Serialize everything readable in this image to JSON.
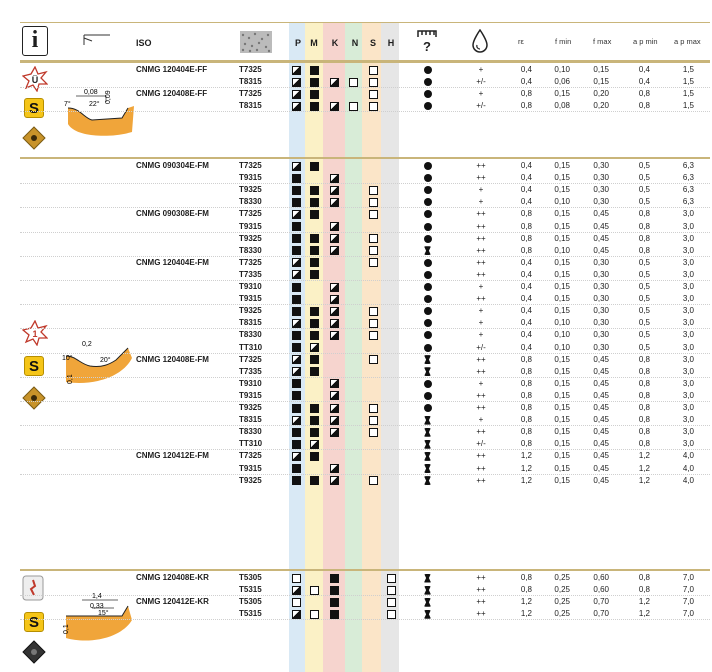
{
  "header": {
    "info_icon": "i",
    "iso_label": "ISO",
    "materials": [
      "P",
      "M",
      "K",
      "N",
      "S",
      "H"
    ],
    "cooling_symbol": "drop-icon",
    "params": [
      "rε",
      "f min",
      "f max",
      "a p min",
      "a p max"
    ]
  },
  "colors": {
    "P": "#d9e9f5",
    "M": "#fbf1c6",
    "K": "#f6d4ce",
    "N": "#d8ecd7",
    "S": "#fbe5c8",
    "H": "#e6e6e6",
    "accent": "#f5c518",
    "rule": "#c9b57a"
  },
  "sections": [
    {
      "geometry_labels": [
        "0,08",
        "7°",
        "22°",
        "0,09"
      ],
      "rows": [
        {
          "iso": "CNMG 120404E-FF",
          "grade": "T7325",
          "P": "half",
          "M": "full",
          "K": "",
          "N": "",
          "S": "empty",
          "H": "",
          "dot": "single",
          "cool": "+",
          "re": "0,4",
          "fmin": "0,10",
          "fmax": "0,15",
          "apmin": "0,4",
          "apmax": "1,5"
        },
        {
          "iso": "",
          "grade": "T8315",
          "P": "half",
          "M": "full",
          "K": "half",
          "N": "empty",
          "S": "empty",
          "H": "",
          "dot": "single",
          "cool": "+/-",
          "re": "0,4",
          "fmin": "0,06",
          "fmax": "0,15",
          "apmin": "0,4",
          "apmax": "1,5"
        },
        {
          "iso": "CNMG 120408E-FF",
          "grade": "T7325",
          "P": "half",
          "M": "full",
          "K": "",
          "N": "",
          "S": "empty",
          "H": "",
          "dot": "single",
          "cool": "+",
          "re": "0,8",
          "fmin": "0,15",
          "fmax": "0,20",
          "apmin": "0,8",
          "apmax": "1,5"
        },
        {
          "iso": "",
          "grade": "T8315",
          "P": "half",
          "M": "full",
          "K": "half",
          "N": "empty",
          "S": "empty",
          "H": "",
          "dot": "single",
          "cool": "+/-",
          "re": "0,8",
          "fmin": "0,08",
          "fmax": "0,20",
          "apmin": "0,8",
          "apmax": "1,5"
        }
      ]
    },
    {
      "geometry_labels": [
        "0,2",
        "10°",
        "20°",
        "0,1"
      ],
      "rows": [
        {
          "iso": "CNMG 090304E-FM",
          "grade": "T7325",
          "P": "half",
          "M": "full",
          "K": "",
          "N": "",
          "S": "",
          "H": "",
          "dot": "single",
          "cool": "++",
          "re": "0,4",
          "fmin": "0,15",
          "fmax": "0,30",
          "apmin": "0,5",
          "apmax": "6,3"
        },
        {
          "iso": "",
          "grade": "T9315",
          "P": "full",
          "M": "",
          "K": "half",
          "N": "",
          "S": "",
          "H": "",
          "dot": "single",
          "cool": "++",
          "re": "0,4",
          "fmin": "0,15",
          "fmax": "0,30",
          "apmin": "0,5",
          "apmax": "6,3"
        },
        {
          "iso": "",
          "grade": "T9325",
          "P": "full",
          "M": "full",
          "K": "half",
          "N": "",
          "S": "empty",
          "H": "",
          "dot": "single",
          "cool": "+",
          "re": "0,4",
          "fmin": "0,15",
          "fmax": "0,30",
          "apmin": "0,5",
          "apmax": "6,3"
        },
        {
          "iso": "",
          "grade": "T8330",
          "P": "full",
          "M": "full",
          "K": "half",
          "N": "",
          "S": "empty",
          "H": "",
          "dot": "single",
          "cool": "+",
          "re": "0,4",
          "fmin": "0,10",
          "fmax": "0,30",
          "apmin": "0,5",
          "apmax": "6,3"
        },
        {
          "iso": "CNMG 090308E-FM",
          "grade": "T7325",
          "P": "half",
          "M": "full",
          "K": "",
          "N": "",
          "S": "empty",
          "H": "",
          "dot": "single",
          "cool": "++",
          "re": "0,8",
          "fmin": "0,15",
          "fmax": "0,45",
          "apmin": "0,8",
          "apmax": "3,0"
        },
        {
          "iso": "",
          "grade": "T9315",
          "P": "full",
          "M": "",
          "K": "half",
          "N": "",
          "S": "",
          "H": "",
          "dot": "single",
          "cool": "++",
          "re": "0,8",
          "fmin": "0,15",
          "fmax": "0,45",
          "apmin": "0,8",
          "apmax": "3,0"
        },
        {
          "iso": "",
          "grade": "T9325",
          "P": "full",
          "M": "full",
          "K": "half",
          "N": "",
          "S": "empty",
          "H": "",
          "dot": "single",
          "cool": "++",
          "re": "0,8",
          "fmin": "0,15",
          "fmax": "0,45",
          "apmin": "0,8",
          "apmax": "3,0"
        },
        {
          "iso": "",
          "grade": "T8330",
          "P": "full",
          "M": "full",
          "K": "half",
          "N": "",
          "S": "empty",
          "H": "",
          "dot": "double",
          "cool": "++",
          "re": "0,8",
          "fmin": "0,10",
          "fmax": "0,45",
          "apmin": "0,8",
          "apmax": "3,0"
        },
        {
          "iso": "CNMG 120404E-FM",
          "grade": "T7325",
          "P": "half",
          "M": "full",
          "K": "",
          "N": "",
          "S": "empty",
          "H": "",
          "dot": "single",
          "cool": "++",
          "re": "0,4",
          "fmin": "0,15",
          "fmax": "0,30",
          "apmin": "0,5",
          "apmax": "3,0"
        },
        {
          "iso": "",
          "grade": "T7335",
          "P": "half",
          "M": "full",
          "K": "",
          "N": "",
          "S": "",
          "H": "",
          "dot": "single",
          "cool": "++",
          "re": "0,4",
          "fmin": "0,15",
          "fmax": "0,30",
          "apmin": "0,5",
          "apmax": "3,0"
        },
        {
          "iso": "",
          "grade": "T9310",
          "P": "full",
          "M": "",
          "K": "half",
          "N": "",
          "S": "",
          "H": "",
          "dot": "single",
          "cool": "+",
          "re": "0,4",
          "fmin": "0,15",
          "fmax": "0,30",
          "apmin": "0,5",
          "apmax": "3,0"
        },
        {
          "iso": "",
          "grade": "T9315",
          "P": "full",
          "M": "",
          "K": "half",
          "N": "",
          "S": "",
          "H": "",
          "dot": "single",
          "cool": "++",
          "re": "0,4",
          "fmin": "0,15",
          "fmax": "0,30",
          "apmin": "0,5",
          "apmax": "3,0"
        },
        {
          "iso": "",
          "grade": "T9325",
          "P": "full",
          "M": "full",
          "K": "half",
          "N": "",
          "S": "empty",
          "H": "",
          "dot": "single",
          "cool": "+",
          "re": "0,4",
          "fmin": "0,15",
          "fmax": "0,30",
          "apmin": "0,5",
          "apmax": "3,0"
        },
        {
          "iso": "",
          "grade": "T8315",
          "P": "half",
          "M": "full",
          "K": "half",
          "N": "",
          "S": "empty",
          "H": "",
          "dot": "single",
          "cool": "+",
          "re": "0,4",
          "fmin": "0,10",
          "fmax": "0,30",
          "apmin": "0,5",
          "apmax": "3,0"
        },
        {
          "iso": "",
          "grade": "T8330",
          "P": "full",
          "M": "full",
          "K": "half",
          "N": "",
          "S": "empty",
          "H": "",
          "dot": "single",
          "cool": "+",
          "re": "0,4",
          "fmin": "0,10",
          "fmax": "0,30",
          "apmin": "0,5",
          "apmax": "3,0"
        },
        {
          "iso": "",
          "grade": "TT310",
          "P": "full",
          "M": "half",
          "K": "",
          "N": "",
          "S": "",
          "H": "",
          "dot": "single",
          "cool": "+/-",
          "re": "0,4",
          "fmin": "0,10",
          "fmax": "0,30",
          "apmin": "0,5",
          "apmax": "3,0"
        },
        {
          "iso": "CNMG 120408E-FM",
          "grade": "T7325",
          "P": "half",
          "M": "full",
          "K": "",
          "N": "",
          "S": "empty",
          "H": "",
          "dot": "double",
          "cool": "++",
          "re": "0,8",
          "fmin": "0,15",
          "fmax": "0,45",
          "apmin": "0,8",
          "apmax": "3,0"
        },
        {
          "iso": "",
          "grade": "T7335",
          "P": "half",
          "M": "full",
          "K": "",
          "N": "",
          "S": "",
          "H": "",
          "dot": "double",
          "cool": "++",
          "re": "0,8",
          "fmin": "0,15",
          "fmax": "0,45",
          "apmin": "0,8",
          "apmax": "3,0"
        },
        {
          "iso": "",
          "grade": "T9310",
          "P": "full",
          "M": "",
          "K": "half",
          "N": "",
          "S": "",
          "H": "",
          "dot": "single",
          "cool": "+",
          "re": "0,8",
          "fmin": "0,15",
          "fmax": "0,45",
          "apmin": "0,8",
          "apmax": "3,0"
        },
        {
          "iso": "",
          "grade": "T9315",
          "P": "full",
          "M": "",
          "K": "half",
          "N": "",
          "S": "",
          "H": "",
          "dot": "single",
          "cool": "++",
          "re": "0,8",
          "fmin": "0,15",
          "fmax": "0,45",
          "apmin": "0,8",
          "apmax": "3,0"
        },
        {
          "iso": "",
          "grade": "T9325",
          "P": "full",
          "M": "full",
          "K": "half",
          "N": "",
          "S": "empty",
          "H": "",
          "dot": "single",
          "cool": "++",
          "re": "0,8",
          "fmin": "0,15",
          "fmax": "0,45",
          "apmin": "0,8",
          "apmax": "3,0"
        },
        {
          "iso": "",
          "grade": "T8315",
          "P": "half",
          "M": "full",
          "K": "half",
          "N": "",
          "S": "empty",
          "H": "",
          "dot": "double",
          "cool": "+",
          "re": "0,8",
          "fmin": "0,15",
          "fmax": "0,45",
          "apmin": "0,8",
          "apmax": "3,0"
        },
        {
          "iso": "",
          "grade": "T8330",
          "P": "full",
          "M": "full",
          "K": "half",
          "N": "",
          "S": "empty",
          "H": "",
          "dot": "double",
          "cool": "++",
          "re": "0,8",
          "fmin": "0,15",
          "fmax": "0,45",
          "apmin": "0,8",
          "apmax": "3,0"
        },
        {
          "iso": "",
          "grade": "TT310",
          "P": "full",
          "M": "half",
          "K": "",
          "N": "",
          "S": "",
          "H": "",
          "dot": "double",
          "cool": "+/-",
          "re": "0,8",
          "fmin": "0,15",
          "fmax": "0,45",
          "apmin": "0,8",
          "apmax": "3,0"
        },
        {
          "iso": "CNMG 120412E-FM",
          "grade": "T7325",
          "P": "half",
          "M": "full",
          "K": "",
          "N": "",
          "S": "",
          "H": "",
          "dot": "double",
          "cool": "++",
          "re": "1,2",
          "fmin": "0,15",
          "fmax": "0,45",
          "apmin": "1,2",
          "apmax": "4,0"
        },
        {
          "iso": "",
          "grade": "T9315",
          "P": "full",
          "M": "",
          "K": "half",
          "N": "",
          "S": "",
          "H": "",
          "dot": "double",
          "cool": "++",
          "re": "1,2",
          "fmin": "0,15",
          "fmax": "0,45",
          "apmin": "1,2",
          "apmax": "4,0"
        },
        {
          "iso": "",
          "grade": "T9325",
          "P": "full",
          "M": "full",
          "K": "half",
          "N": "",
          "S": "empty",
          "H": "",
          "dot": "double",
          "cool": "++",
          "re": "1,2",
          "fmin": "0,15",
          "fmax": "0,45",
          "apmin": "1,2",
          "apmax": "4,0"
        }
      ]
    },
    {
      "geometry_labels": [
        "1,4",
        "0,33",
        "15°",
        "0,1"
      ],
      "rows": [
        {
          "iso": "CNMG 120408E-KR",
          "grade": "T5305",
          "P": "empty",
          "M": "",
          "K": "full",
          "N": "",
          "S": "",
          "H": "empty",
          "dot": "double",
          "cool": "++",
          "re": "0,8",
          "fmin": "0,25",
          "fmax": "0,60",
          "apmin": "0,8",
          "apmax": "7,0"
        },
        {
          "iso": "",
          "grade": "T5315",
          "P": "half",
          "M": "empty",
          "K": "full",
          "N": "",
          "S": "",
          "H": "empty",
          "dot": "double",
          "cool": "++",
          "re": "0,8",
          "fmin": "0,25",
          "fmax": "0,60",
          "apmin": "0,8",
          "apmax": "7,0"
        },
        {
          "iso": "CNMG 120412E-KR",
          "grade": "T5305",
          "P": "empty",
          "M": "",
          "K": "full",
          "N": "",
          "S": "",
          "H": "empty",
          "dot": "double",
          "cool": "++",
          "re": "1,2",
          "fmin": "0,25",
          "fmax": "0,70",
          "apmin": "1,2",
          "apmax": "7,0"
        },
        {
          "iso": "",
          "grade": "T5315",
          "P": "half",
          "M": "empty",
          "K": "full",
          "N": "",
          "S": "",
          "H": "empty",
          "dot": "double",
          "cool": "++",
          "re": "1,2",
          "fmin": "0,25",
          "fmax": "0,70",
          "apmin": "1,2",
          "apmax": "7,0"
        }
      ]
    }
  ]
}
